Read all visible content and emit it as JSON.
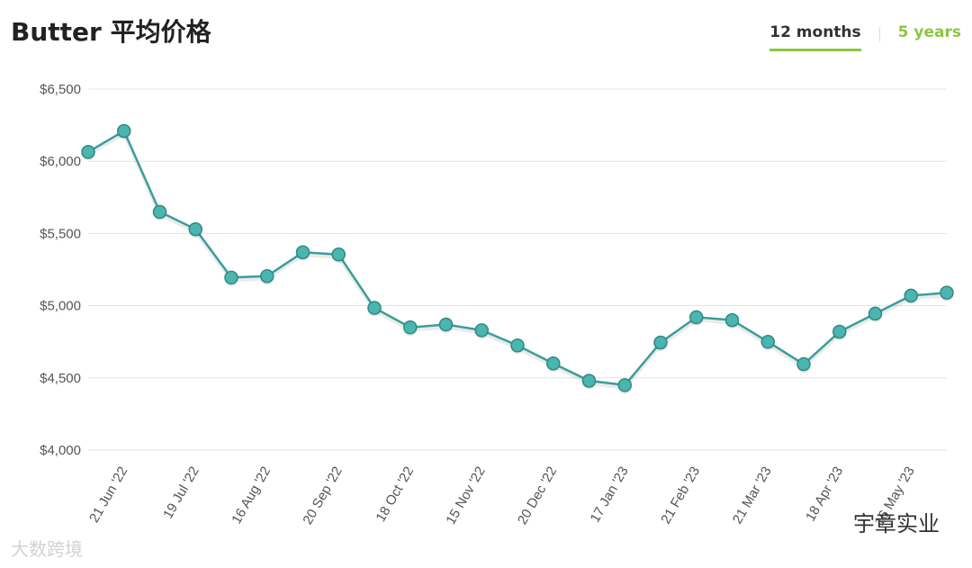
{
  "header": {
    "title": "Butter 平均价格",
    "tabs": [
      {
        "label": "12 months",
        "active": true
      },
      {
        "label": "5 years",
        "active": false
      }
    ]
  },
  "watermarks": {
    "left": "大数跨境",
    "right": "宇章实业"
  },
  "colors": {
    "line": "#3a9e9a",
    "marker": "#4bb5b0",
    "grid": "#e3e3e3",
    "accent": "#8cc63f"
  },
  "chart_data": {
    "type": "line",
    "ylim": [
      4000,
      6500
    ],
    "yticks": [
      {
        "value": 4000,
        "label": "$4,000"
      },
      {
        "value": 4500,
        "label": "$4,500"
      },
      {
        "value": 5000,
        "label": "$5,000"
      },
      {
        "value": 5500,
        "label": "$5,500"
      },
      {
        "value": 6000,
        "label": "$6,000"
      },
      {
        "value": 6500,
        "label": "$6,500"
      }
    ],
    "xticks": [
      {
        "index": 1,
        "label": "21 Jun '22"
      },
      {
        "index": 3,
        "label": "19 Jul '22"
      },
      {
        "index": 5,
        "label": "16 Aug '22"
      },
      {
        "index": 7,
        "label": "20 Sep '22"
      },
      {
        "index": 9,
        "label": "18 Oct '22"
      },
      {
        "index": 11,
        "label": "15 Nov '22"
      },
      {
        "index": 13,
        "label": "20 Dec '22"
      },
      {
        "index": 15,
        "label": "17 Jan '23"
      },
      {
        "index": 17,
        "label": "21 Feb '23"
      },
      {
        "index": 19,
        "label": "21 Mar '23"
      },
      {
        "index": 21,
        "label": "18 Apr '23"
      },
      {
        "index": 23,
        "label": "16 May '23"
      }
    ],
    "values": [
      6065,
      6210,
      5650,
      5530,
      5195,
      5205,
      5370,
      5355,
      4985,
      4850,
      4870,
      4830,
      4725,
      4600,
      4480,
      4450,
      4745,
      4920,
      4900,
      4750,
      4595,
      4820,
      4945,
      5070,
      5090
    ]
  }
}
